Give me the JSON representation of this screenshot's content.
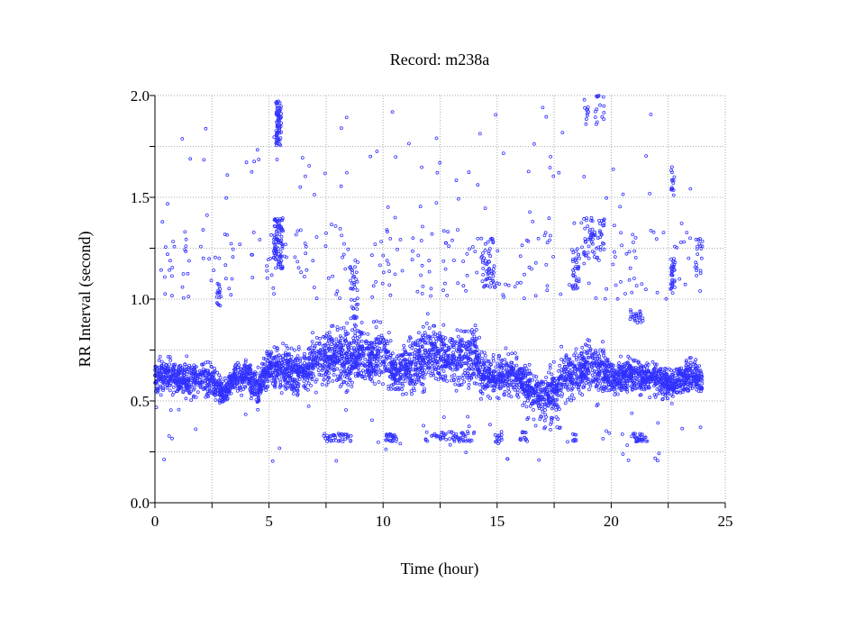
{
  "chart_data": {
    "type": "scatter",
    "title": "Record:  m238a",
    "xlabel": "Time (hour)",
    "ylabel": "RR Interval (second)",
    "xlim": [
      0,
      25
    ],
    "ylim": [
      0.0,
      2.0
    ],
    "xticks": [
      "0",
      "5",
      "10",
      "15",
      "20",
      "25"
    ],
    "xtick_values": [
      0,
      5,
      10,
      15,
      20,
      25
    ],
    "yticks": [
      "0.0",
      "0.5",
      "1.0",
      "1.5",
      "2.0"
    ],
    "ytick_values": [
      0.0,
      0.5,
      1.0,
      1.5,
      2.0
    ],
    "grid": true,
    "grid_step": {
      "x": 2.5,
      "y": 0.25
    },
    "marker_color": "#3030ff",
    "series": [
      {
        "name": "RR intervals",
        "trend_x_step_hours": 0.5,
        "trend_mean": [
          0.63,
          0.62,
          0.61,
          0.6,
          0.62,
          0.6,
          0.53,
          0.61,
          0.62,
          0.56,
          0.66,
          0.67,
          0.64,
          0.65,
          0.68,
          0.72,
          0.72,
          0.71,
          0.73,
          0.72,
          0.74,
          0.64,
          0.66,
          0.68,
          0.73,
          0.73,
          0.7,
          0.72,
          0.73,
          0.62,
          0.62,
          0.63,
          0.61,
          0.55,
          0.52,
          0.56,
          0.63,
          0.64,
          0.67,
          0.66,
          0.62,
          0.62,
          0.63,
          0.62,
          0.61,
          0.58,
          0.61,
          0.62,
          0.6
        ],
        "trend_spread": [
          0.05,
          0.05,
          0.05,
          0.05,
          0.05,
          0.05,
          0.04,
          0.04,
          0.04,
          0.05,
          0.06,
          0.06,
          0.06,
          0.06,
          0.07,
          0.08,
          0.08,
          0.08,
          0.08,
          0.08,
          0.09,
          0.06,
          0.07,
          0.08,
          0.09,
          0.08,
          0.07,
          0.09,
          0.09,
          0.06,
          0.06,
          0.06,
          0.06,
          0.05,
          0.05,
          0.06,
          0.07,
          0.07,
          0.07,
          0.07,
          0.05,
          0.05,
          0.05,
          0.05,
          0.05,
          0.05,
          0.05,
          0.05,
          0.05
        ],
        "outlier_clusters": [
          {
            "x": [
              5.3,
              5.55
            ],
            "y": [
              1.75,
              1.98
            ],
            "n": 70
          },
          {
            "x": [
              5.2,
              5.6
            ],
            "y": [
              1.15,
              1.4
            ],
            "n": 90
          },
          {
            "x": [
              0.2,
              24.0
            ],
            "y": [
              1.0,
              1.35
            ],
            "n": 260
          },
          {
            "x": [
              0.3,
              24.0
            ],
            "y": [
              1.35,
              1.75
            ],
            "n": 60
          },
          {
            "x": [
              1.0,
              24.0
            ],
            "y": [
              1.75,
              1.98
            ],
            "n": 15
          },
          {
            "x": [
              7.4,
              8.6
            ],
            "y": [
              0.3,
              0.34
            ],
            "n": 40
          },
          {
            "x": [
              10.1,
              10.6
            ],
            "y": [
              0.3,
              0.34
            ],
            "n": 25
          },
          {
            "x": [
              11.8,
              14.2
            ],
            "y": [
              0.3,
              0.35
            ],
            "n": 60
          },
          {
            "x": [
              14.9,
              15.2
            ],
            "y": [
              0.29,
              0.35
            ],
            "n": 15
          },
          {
            "x": [
              15.9,
              16.3
            ],
            "y": [
              0.29,
              0.35
            ],
            "n": 12
          },
          {
            "x": [
              18.3,
              18.5
            ],
            "y": [
              0.3,
              0.34
            ],
            "n": 8
          },
          {
            "x": [
              20.9,
              21.6
            ],
            "y": [
              0.3,
              0.34
            ],
            "n": 30
          },
          {
            "x": [
              2.7,
              2.9
            ],
            "y": [
              0.95,
              1.08
            ],
            "n": 15
          },
          {
            "x": [
              8.6,
              8.9
            ],
            "y": [
              0.8,
              1.2
            ],
            "n": 35
          },
          {
            "x": [
              14.3,
              14.9
            ],
            "y": [
              1.05,
              1.3
            ],
            "n": 50
          },
          {
            "x": [
              18.3,
              18.6
            ],
            "y": [
              1.05,
              1.25
            ],
            "n": 35
          },
          {
            "x": [
              18.8,
              19.7
            ],
            "y": [
              1.2,
              1.4
            ],
            "n": 60
          },
          {
            "x": [
              19.3,
              19.7
            ],
            "y": [
              1.85,
              2.0
            ],
            "n": 15
          },
          {
            "x": [
              18.8,
              19.0
            ],
            "y": [
              1.85,
              1.98
            ],
            "n": 10
          },
          {
            "x": [
              20.8,
              21.4
            ],
            "y": [
              0.88,
              0.95
            ],
            "n": 25
          },
          {
            "x": [
              22.6,
              22.8
            ],
            "y": [
              1.05,
              1.2
            ],
            "n": 30
          },
          {
            "x": [
              22.6,
              22.8
            ],
            "y": [
              1.5,
              1.65
            ],
            "n": 15
          },
          {
            "x": [
              23.7,
              24.0
            ],
            "y": [
              1.1,
              1.3
            ],
            "n": 20
          },
          {
            "x": [
              16.3,
              17.8
            ],
            "y": [
              0.35,
              0.5
            ],
            "n": 30
          },
          {
            "x": [
              0.0,
              24.0
            ],
            "y": [
              0.2,
              0.5
            ],
            "n": 50
          }
        ]
      }
    ]
  }
}
